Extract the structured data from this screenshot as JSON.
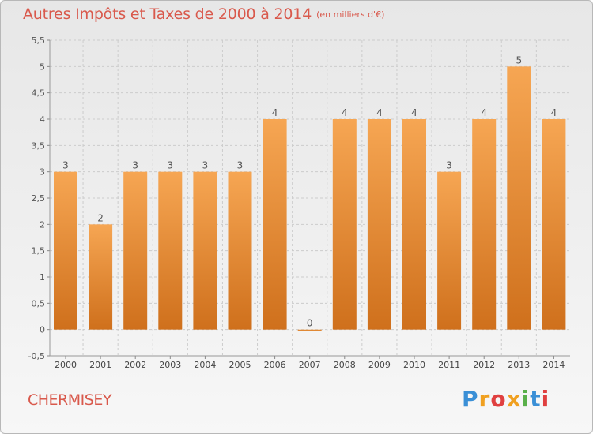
{
  "header": {
    "title": "Autres Impôts et Taxes de 2000 à 2014",
    "unit": "(en milliers d'€)"
  },
  "footer": {
    "place": "CHERMISEY",
    "logo": [
      "P",
      "r",
      "o",
      "x",
      "i",
      "t",
      "i"
    ]
  },
  "colors": {
    "title": "#d9594c",
    "bar_top": "#f6a653",
    "bar_bottom": "#cf701c",
    "grid": "#cccccc"
  },
  "chart_data": {
    "type": "bar",
    "categories": [
      "2000",
      "2001",
      "2002",
      "2003",
      "2004",
      "2005",
      "2006",
      "2007",
      "2008",
      "2009",
      "2010",
      "2011",
      "2012",
      "2013",
      "2014"
    ],
    "values": [
      3,
      2,
      3,
      3,
      3,
      3,
      4,
      0,
      4,
      4,
      4,
      3,
      4,
      5,
      4
    ],
    "data_labels": [
      "3",
      "2",
      "3",
      "3",
      "3",
      "3",
      "4",
      "0",
      "4",
      "4",
      "4",
      "3",
      "4",
      "5",
      "4"
    ],
    "ylim": [
      -0.5,
      5.5
    ],
    "yticks": [
      "-0,5",
      "0",
      "0,5",
      "1",
      "1,5",
      "2",
      "2,5",
      "3",
      "3,5",
      "4",
      "4,5",
      "5",
      "5,5"
    ],
    "ytick_values": [
      -0.5,
      0,
      0.5,
      1,
      1.5,
      2,
      2.5,
      3,
      3.5,
      4,
      4.5,
      5,
      5.5
    ],
    "grid": true,
    "legend": "none"
  }
}
